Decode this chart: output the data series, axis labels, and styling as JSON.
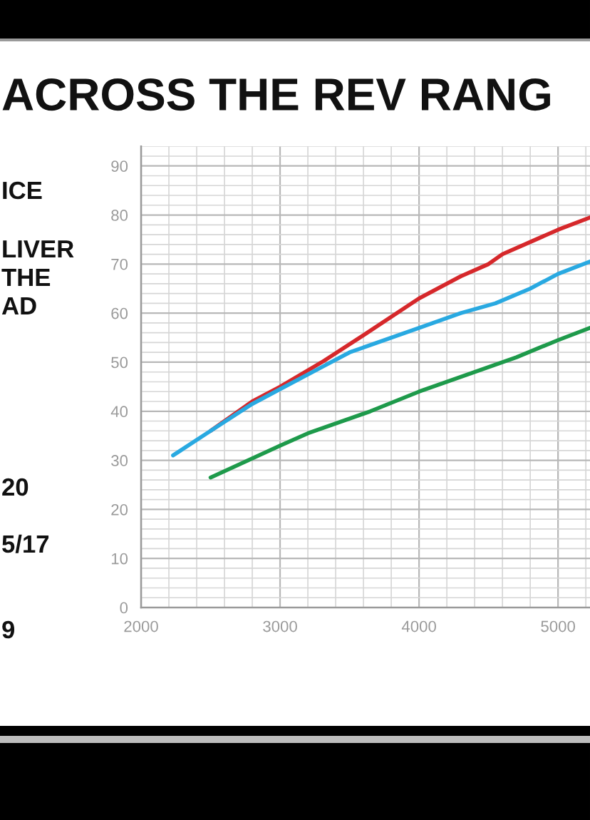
{
  "chart_data": {
    "type": "line",
    "title": "ACROSS THE REV RANG",
    "annotations": [
      "ICE",
      "LIVER\nTHE\nAD",
      "20",
      "5/17",
      "9"
    ],
    "xlim": [
      2000,
      5230
    ],
    "xticks": [
      2000,
      3000,
      4000,
      5000
    ],
    "ylim": [
      0,
      94
    ],
    "yticks": [
      0,
      10,
      20,
      30,
      40,
      50,
      60,
      70,
      80,
      90
    ],
    "grid": true,
    "line_style": "solid",
    "series": [
      {
        "color": "#d6282b",
        "x": [
          2500,
          2800,
          3000,
          3300,
          3600,
          4000,
          4300,
          4500,
          4600,
          4800,
          5000,
          5230
        ],
        "values": [
          36,
          42,
          45,
          50,
          55.5,
          63,
          67.5,
          70,
          72,
          74.5,
          77,
          79.5
        ]
      },
      {
        "color": "#29a9e1",
        "x": [
          2230,
          2500,
          2800,
          3000,
          3300,
          3500,
          4000,
          4300,
          4550,
          4800,
          5000,
          5230
        ],
        "values": [
          31,
          36,
          41.5,
          44.5,
          49,
          52,
          57,
          60,
          62,
          65,
          68,
          70.5
        ]
      },
      {
        "color": "#1e9a4b",
        "x": [
          2500,
          3000,
          3200,
          3650,
          4000,
          4350,
          4700,
          5000,
          5230
        ],
        "values": [
          26.5,
          33,
          35.5,
          40,
          44,
          47.5,
          51,
          54.5,
          57
        ]
      }
    ]
  }
}
